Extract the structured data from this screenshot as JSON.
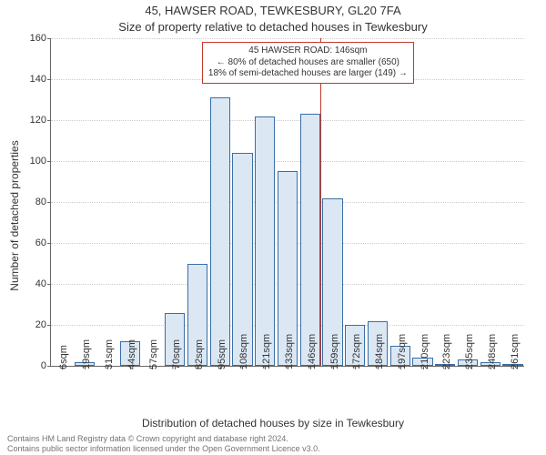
{
  "title_line1": "45, HAWSER ROAD, TEWKESBURY, GL20 7FA",
  "title_line2": "Size of property relative to detached houses in Tewkesbury",
  "y_axis_label": "Number of detached properties",
  "x_axis_label": "Distribution of detached houses by size in Tewkesbury",
  "footer_line1": "Contains HM Land Registry data © Crown copyright and database right 2024.",
  "footer_line2": "Contains public sector information licensed under the Open Government Licence v3.0.",
  "chart": {
    "type": "histogram",
    "background_color": "#ffffff",
    "grid_color": "#cccccc",
    "axis_color": "#666666",
    "bar_fill": "#dbe8f4",
    "bar_stroke": "#3a6ea5",
    "reference_line_color": "#c0392b",
    "ylim": [
      0,
      160
    ],
    "ytick_step": 20,
    "yticks": [
      0,
      20,
      40,
      60,
      80,
      100,
      120,
      140,
      160
    ],
    "categories": [
      "6sqm",
      "19sqm",
      "31sqm",
      "44sqm",
      "57sqm",
      "70sqm",
      "82sqm",
      "95sqm",
      "108sqm",
      "121sqm",
      "133sqm",
      "146sqm",
      "159sqm",
      "172sqm",
      "184sqm",
      "197sqm",
      "210sqm",
      "223sqm",
      "235sqm",
      "248sqm",
      "261sqm"
    ],
    "values": [
      0,
      2,
      0,
      12,
      0,
      26,
      50,
      131,
      104,
      122,
      95,
      123,
      82,
      20,
      22,
      10,
      4,
      1,
      3,
      2,
      1
    ],
    "bar_width_ratio": 0.9,
    "reference_value": 146,
    "reference_index": 11,
    "label_fontsize": 12,
    "tick_fontsize": 11,
    "title_fontsize": 13
  },
  "annotation": {
    "line1": "45 HAWSER ROAD: 146sqm",
    "line2": "← 80% of detached houses are smaller (650)",
    "line3": "18% of semi-detached houses are larger (149) →"
  }
}
